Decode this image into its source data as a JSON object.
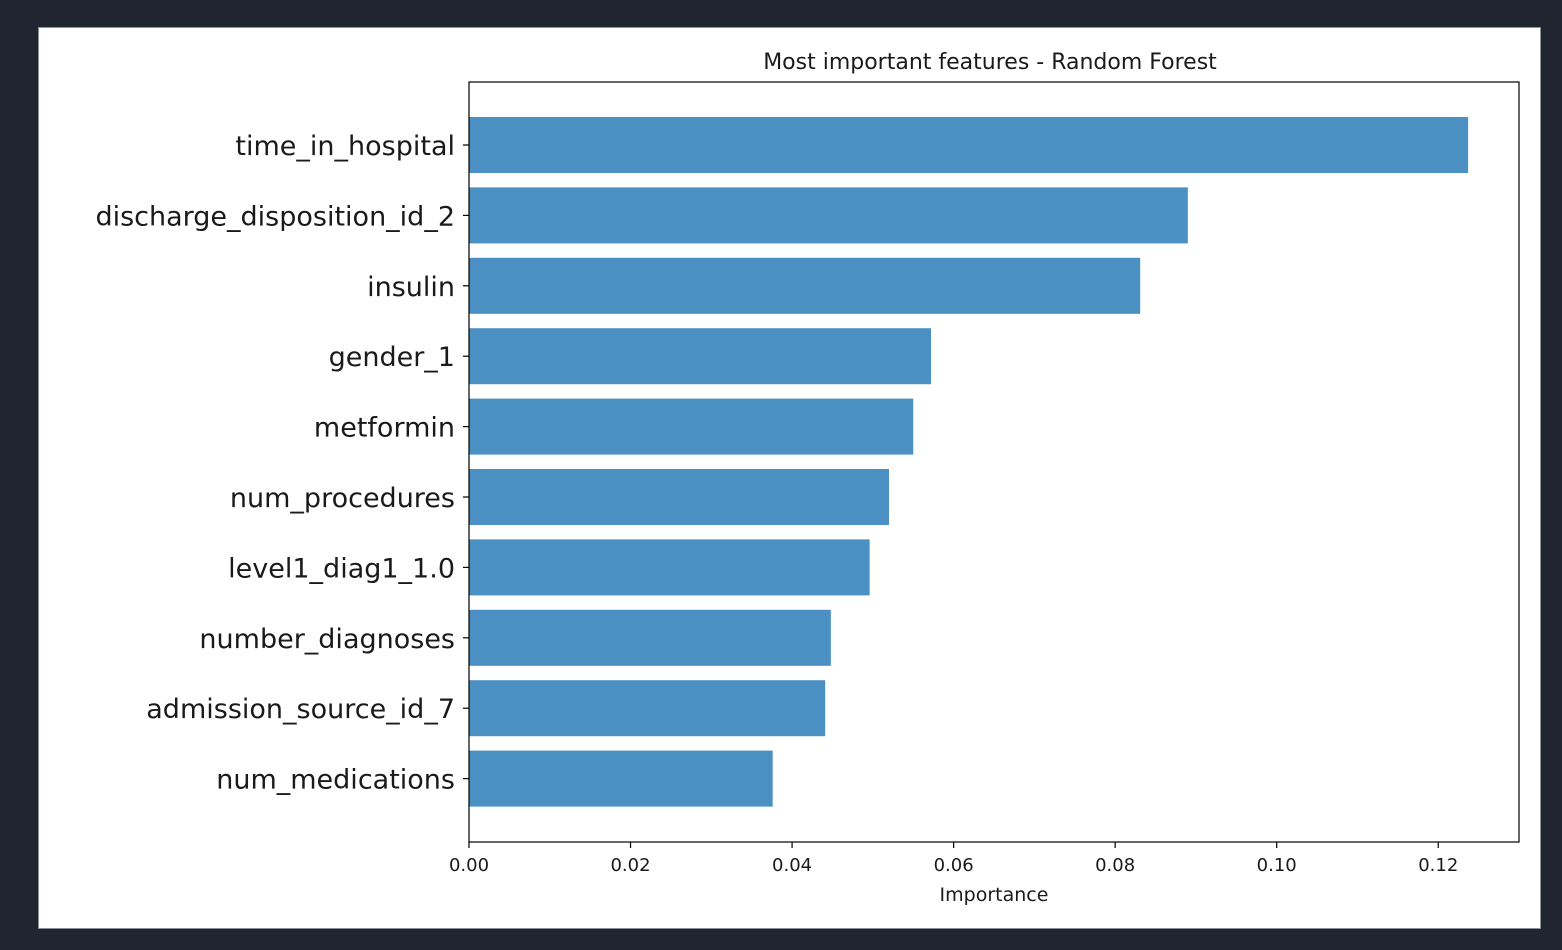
{
  "chart_data": {
    "type": "bar",
    "orientation": "horizontal",
    "title": "Most important features - Random Forest",
    "xlabel": "Importance",
    "ylabel": "",
    "xlim": [
      0,
      0.13
    ],
    "xticks": [
      "0.00",
      "0.02",
      "0.04",
      "0.06",
      "0.08",
      "0.10",
      "0.12"
    ],
    "xtick_values": [
      0,
      0.02,
      0.04,
      0.06,
      0.08,
      0.1,
      0.12
    ],
    "categories": [
      "time_in_hospital",
      "discharge_disposition_id_2",
      "insulin",
      "gender_1",
      "metformin",
      "num_procedures",
      "level1_diag1_1.0",
      "number_diagnoses",
      "admission_source_id_7",
      "num_medications"
    ],
    "values": [
      0.1237,
      0.089,
      0.0831,
      0.0572,
      0.055,
      0.052,
      0.0496,
      0.0448,
      0.0441,
      0.0376
    ],
    "grid": false,
    "legend": "none",
    "bar_color": "#4a90c2"
  }
}
